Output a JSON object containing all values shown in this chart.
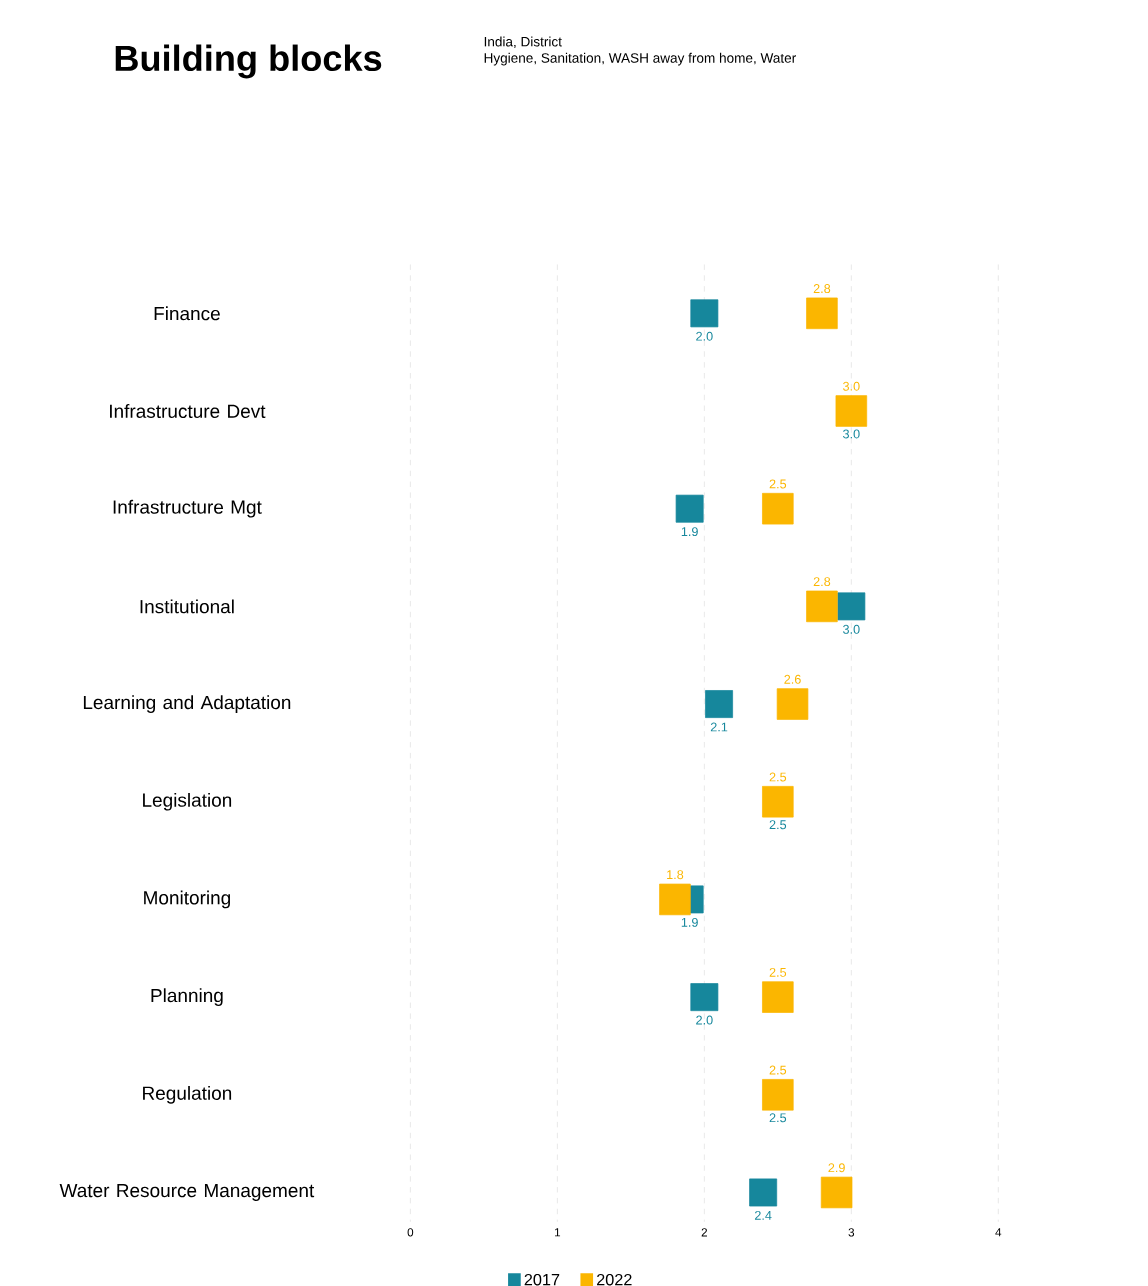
{
  "chart_data": {
    "type": "scatter",
    "title": "Building blocks",
    "subtitle": "India, District",
    "annotations": [
      "Hygiene, Sanitation, WASH away from home, Water"
    ],
    "categories": [
      "Finance",
      "Infrastructure Devt",
      "Infrastructure Mgt",
      "Institutional",
      "Learning and Adaptation",
      "Legislation",
      "Monitoring",
      "Planning",
      "Regulation",
      "Water Resource Management"
    ],
    "series": [
      {
        "name": "2017",
        "color": "#16879c",
        "values": [
          2.0,
          null,
          1.9,
          3.0,
          2.1,
          null,
          1.9,
          2.0,
          null,
          2.4
        ],
        "value_labels": [
          "2.0",
          "3.0",
          "1.9",
          "3.0",
          "2.1",
          "2.5",
          "1.9",
          "2.0",
          "2.5",
          "2.4"
        ]
      },
      {
        "name": "2022",
        "color": "#fbb600",
        "values": [
          2.8,
          3.0,
          2.5,
          2.8,
          2.6,
          2.5,
          1.8,
          2.5,
          2.5,
          2.9
        ],
        "value_labels": [
          "2.8",
          "3.0",
          "2.5",
          "2.8",
          "2.6",
          "2.5",
          "1.8",
          "2.5",
          "2.5",
          "2.9"
        ]
      }
    ],
    "orientation": "horizontal",
    "xlim": [
      0,
      4
    ],
    "xticks": [
      0,
      1,
      2,
      3,
      4
    ],
    "grid": "x",
    "legend": "bottom",
    "marker": "square"
  }
}
